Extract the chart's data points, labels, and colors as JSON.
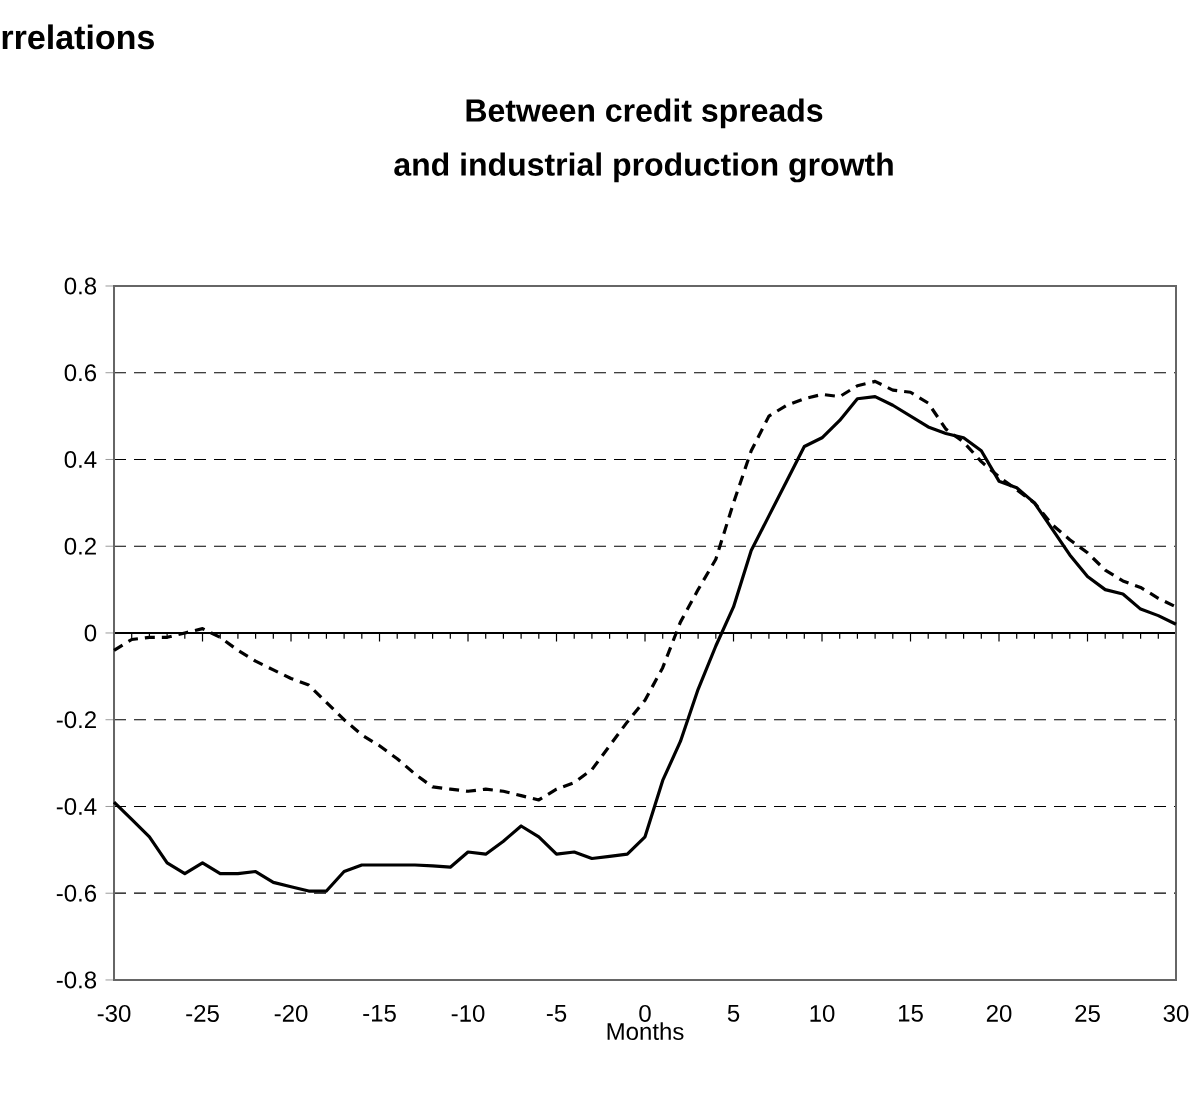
{
  "chart_data": {
    "type": "line",
    "title": "Between credit spreads",
    "subtitle": "and industrial production growth",
    "xlabel": "Months",
    "annotations": [
      "rrelations"
    ],
    "x": [
      -30,
      -29,
      -28,
      -27,
      -26,
      -25,
      -24,
      -23,
      -22,
      -21,
      -20,
      -19,
      -18,
      -17,
      -16,
      -15,
      -14,
      -13,
      -12,
      -11,
      -10,
      -9,
      -8,
      -7,
      -6,
      -5,
      -4,
      -3,
      -2,
      -1,
      0,
      1,
      2,
      3,
      4,
      5,
      6,
      7,
      8,
      9,
      10,
      11,
      12,
      13,
      14,
      15,
      16,
      17,
      18,
      19,
      20,
      21,
      22,
      23,
      24,
      25,
      26,
      27,
      28,
      29,
      30
    ],
    "series": [
      {
        "color": "#000000",
        "line_style": "solid",
        "values": [
          -0.39,
          -0.43,
          -0.47,
          -0.53,
          -0.555,
          -0.53,
          -0.555,
          -0.555,
          -0.55,
          -0.575,
          -0.585,
          -0.595,
          -0.595,
          -0.55,
          -0.535,
          -0.535,
          -0.535,
          -0.535,
          -0.537,
          -0.54,
          -0.505,
          -0.51,
          -0.48,
          -0.445,
          -0.47,
          -0.51,
          -0.505,
          -0.52,
          -0.515,
          -0.51,
          -0.47,
          -0.34,
          -0.25,
          -0.13,
          -0.03,
          0.06,
          0.19,
          0.27,
          0.35,
          0.43,
          0.45,
          0.49,
          0.54,
          0.545,
          0.525,
          0.5,
          0.475,
          0.46,
          0.45,
          0.42,
          0.35,
          0.335,
          0.3,
          0.24,
          0.18,
          0.13,
          0.1,
          0.09,
          0.055,
          0.04,
          0.02
        ]
      },
      {
        "color": "#000000",
        "line_style": "dashed",
        "values": [
          -0.04,
          -0.015,
          -0.01,
          -0.01,
          0.0,
          0.01,
          -0.01,
          -0.04,
          -0.065,
          -0.085,
          -0.105,
          -0.12,
          -0.16,
          -0.2,
          -0.235,
          -0.26,
          -0.29,
          -0.325,
          -0.355,
          -0.36,
          -0.365,
          -0.36,
          -0.365,
          -0.375,
          -0.385,
          -0.36,
          -0.345,
          -0.315,
          -0.26,
          -0.205,
          -0.155,
          -0.08,
          0.025,
          0.1,
          0.17,
          0.3,
          0.42,
          0.5,
          0.525,
          0.54,
          0.55,
          0.545,
          0.57,
          0.58,
          0.56,
          0.555,
          0.53,
          0.47,
          0.44,
          0.395,
          0.36,
          0.33,
          0.3,
          0.25,
          0.215,
          0.185,
          0.145,
          0.12,
          0.105,
          0.08,
          0.06
        ]
      }
    ],
    "xlim": [
      -30,
      30
    ],
    "ylim": [
      -0.8,
      0.8
    ],
    "xticks": [
      -30,
      -25,
      -20,
      -15,
      -10,
      -5,
      0,
      5,
      10,
      15,
      20,
      25,
      30
    ],
    "yticks": [
      -0.8,
      -0.6,
      -0.4,
      -0.2,
      0,
      0.2,
      0.4,
      0.6,
      0.8
    ],
    "grid": "y",
    "marker": "none"
  }
}
